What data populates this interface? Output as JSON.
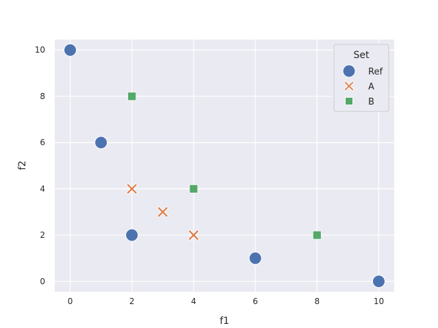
{
  "chart_data": {
    "type": "scatter",
    "xlabel": "f1",
    "ylabel": "f2",
    "xlim": [
      -0.5,
      10.5
    ],
    "ylim": [
      -0.45,
      10.45
    ],
    "xticks": [
      0,
      2,
      4,
      6,
      8,
      10
    ],
    "yticks": [
      0,
      2,
      4,
      6,
      8,
      10
    ],
    "grid": true,
    "legend": {
      "title": "Set",
      "placement": "top-right"
    },
    "series": [
      {
        "name": "Ref",
        "marker": "circle",
        "color": "#4c72b0",
        "points": [
          [
            0,
            10
          ],
          [
            1,
            6
          ],
          [
            2,
            2
          ],
          [
            6,
            1
          ],
          [
            10,
            0
          ]
        ]
      },
      {
        "name": "A",
        "marker": "x",
        "color": "#dd8452",
        "points": [
          [
            2,
            4
          ],
          [
            3,
            3
          ],
          [
            4,
            2
          ]
        ]
      },
      {
        "name": "B",
        "marker": "square",
        "color": "#55a868",
        "points": [
          [
            2,
            8
          ],
          [
            4,
            4
          ],
          [
            8,
            2
          ]
        ]
      }
    ]
  }
}
